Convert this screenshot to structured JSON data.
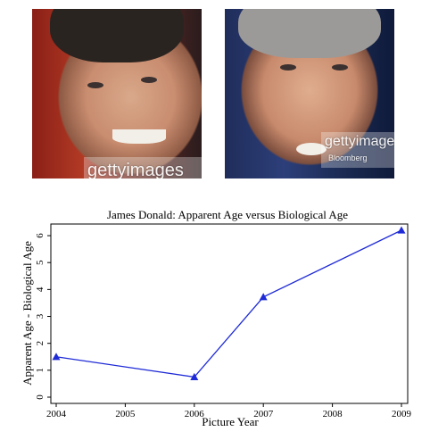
{
  "images": [
    {
      "watermark": "gettyimages"
    },
    {
      "watermark": "gettyimages",
      "caption": "Bloomberg"
    }
  ],
  "chart_data": {
    "type": "line",
    "title": "James Donald: Apparent Age versus Biological Age",
    "xlabel": "Picture Year",
    "ylabel": "Apparent Age - Biological Age",
    "x": [
      2004,
      2006,
      2007,
      2009
    ],
    "series": [
      {
        "values": [
          1.5,
          0.75,
          3.72,
          6.2
        ],
        "color": "#1f2bd6",
        "marker": "triangle"
      }
    ],
    "xlim": [
      2004,
      2009
    ],
    "ylim": [
      0,
      6.3
    ],
    "xticks": [
      "2004",
      "2005",
      "2006",
      "2007",
      "2008",
      "2009"
    ],
    "yticks": [
      "0",
      "1",
      "2",
      "3",
      "4",
      "5",
      "6"
    ],
    "grid": false
  }
}
